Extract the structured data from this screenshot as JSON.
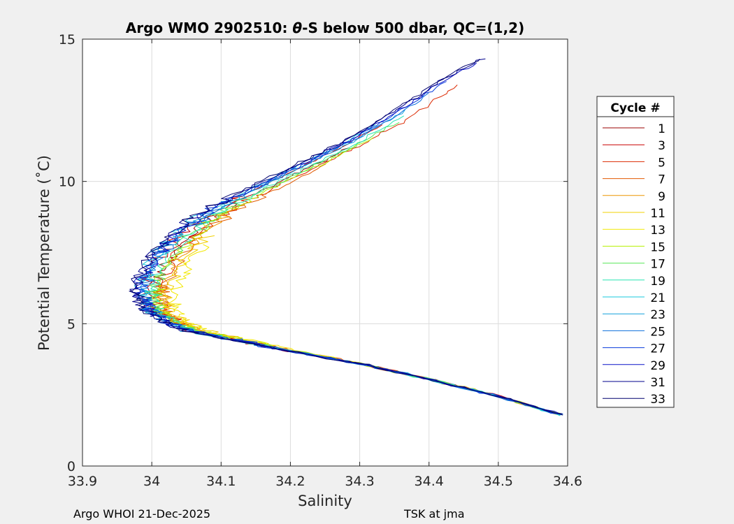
{
  "chart_data": {
    "type": "line",
    "title": "Argo WMO 2902510: θ-S below 500 dbar,  QC=(1,2)",
    "title_prefix": "Argo WMO 2902510: ",
    "title_theta": "θ",
    "title_suffix": "-S below 500 dbar,  QC=(1,2)",
    "xlabel": "Salinity",
    "ylabel": "Potential Temperature (˚C)",
    "xlim": [
      33.9,
      34.6
    ],
    "ylim": [
      0,
      15
    ],
    "xticks": [
      33.9,
      34.0,
      34.1,
      34.2,
      34.3,
      34.4,
      34.5,
      34.6
    ],
    "xtick_labels": [
      "33.9",
      "34",
      "34.1",
      "34.2",
      "34.3",
      "34.4",
      "34.5",
      "34.6"
    ],
    "yticks": [
      0,
      5,
      10,
      15
    ],
    "ytick_labels": [
      "0",
      "5",
      "10",
      "15"
    ],
    "grid": true,
    "legend": {
      "title": "Cycle #",
      "placement": "outside-right",
      "entries": [
        {
          "label": "1",
          "color": "#9a0000"
        },
        {
          "label": "3",
          "color": "#c80000"
        },
        {
          "label": "5",
          "color": "#dc2800"
        },
        {
          "label": "7",
          "color": "#e25a00"
        },
        {
          "label": "9",
          "color": "#ec9600"
        },
        {
          "label": "11",
          "color": "#f0d000"
        },
        {
          "label": "13",
          "color": "#f2e800"
        },
        {
          "label": "15",
          "color": "#b4f000"
        },
        {
          "label": "17",
          "color": "#5ae65a"
        },
        {
          "label": "19",
          "color": "#28e6b4"
        },
        {
          "label": "21",
          "color": "#18c8dc"
        },
        {
          "label": "23",
          "color": "#10a0dc"
        },
        {
          "label": "25",
          "color": "#0a6edc"
        },
        {
          "label": "27",
          "color": "#0a3cdc"
        },
        {
          "label": "29",
          "color": "#0a14c8"
        },
        {
          "label": "31",
          "color": "#00008c"
        },
        {
          "label": "33",
          "color": "#00006e"
        }
      ]
    },
    "base_profile": {
      "s": [
        34.59,
        34.5,
        34.4,
        34.3,
        34.2,
        34.12,
        34.06,
        34.03,
        34.01,
        34.0,
        34.0,
        34.01,
        34.03,
        34.06,
        34.1,
        34.15,
        34.2,
        34.25,
        34.3,
        34.35,
        34.4,
        34.45,
        34.5
      ],
      "t": [
        1.8,
        2.45,
        3.05,
        3.6,
        4.05,
        4.45,
        4.75,
        5.05,
        5.4,
        5.8,
        6.3,
        6.9,
        7.6,
        8.3,
        9.0,
        9.6,
        10.2,
        10.8,
        11.4,
        12.1,
        12.9,
        13.7,
        14.3
      ]
    },
    "series": [
      {
        "cycle": 1,
        "s_offset": 0.003,
        "top_t": 11.2
      },
      {
        "cycle": 3,
        "s_offset": -0.01,
        "top_t": 12.0
      },
      {
        "cycle": 5,
        "s_offset": 0.012,
        "top_t": 13.4
      },
      {
        "cycle": 7,
        "s_offset": 0.02,
        "top_t": 10.6
      },
      {
        "cycle": 9,
        "s_offset": 0.018,
        "top_t": 9.2
      },
      {
        "cycle": 11,
        "s_offset": 0.03,
        "top_t": 8.1
      },
      {
        "cycle": 13,
        "s_offset": 0.04,
        "top_t": 7.8
      },
      {
        "cycle": 15,
        "s_offset": 0.01,
        "top_t": 11.6
      },
      {
        "cycle": 17,
        "s_offset": 0.005,
        "top_t": 12.1
      },
      {
        "cycle": 19,
        "s_offset": 0.0,
        "top_t": 12.4
      },
      {
        "cycle": 21,
        "s_offset": -0.02,
        "top_t": 12.0
      },
      {
        "cycle": 23,
        "s_offset": -0.01,
        "top_t": 12.6
      },
      {
        "cycle": 25,
        "s_offset": -0.012,
        "top_t": 13.1
      },
      {
        "cycle": 27,
        "s_offset": -0.015,
        "top_t": 13.6
      },
      {
        "cycle": 29,
        "s_offset": -0.018,
        "top_t": 14.2
      },
      {
        "cycle": 31,
        "s_offset": -0.022,
        "top_t": 14.5
      },
      {
        "cycle": 33,
        "s_offset": -0.025,
        "top_t": 14.8
      }
    ]
  },
  "footer": {
    "left": "Argo WHOI 21-Dec-2025",
    "right": "TSK at jma"
  }
}
